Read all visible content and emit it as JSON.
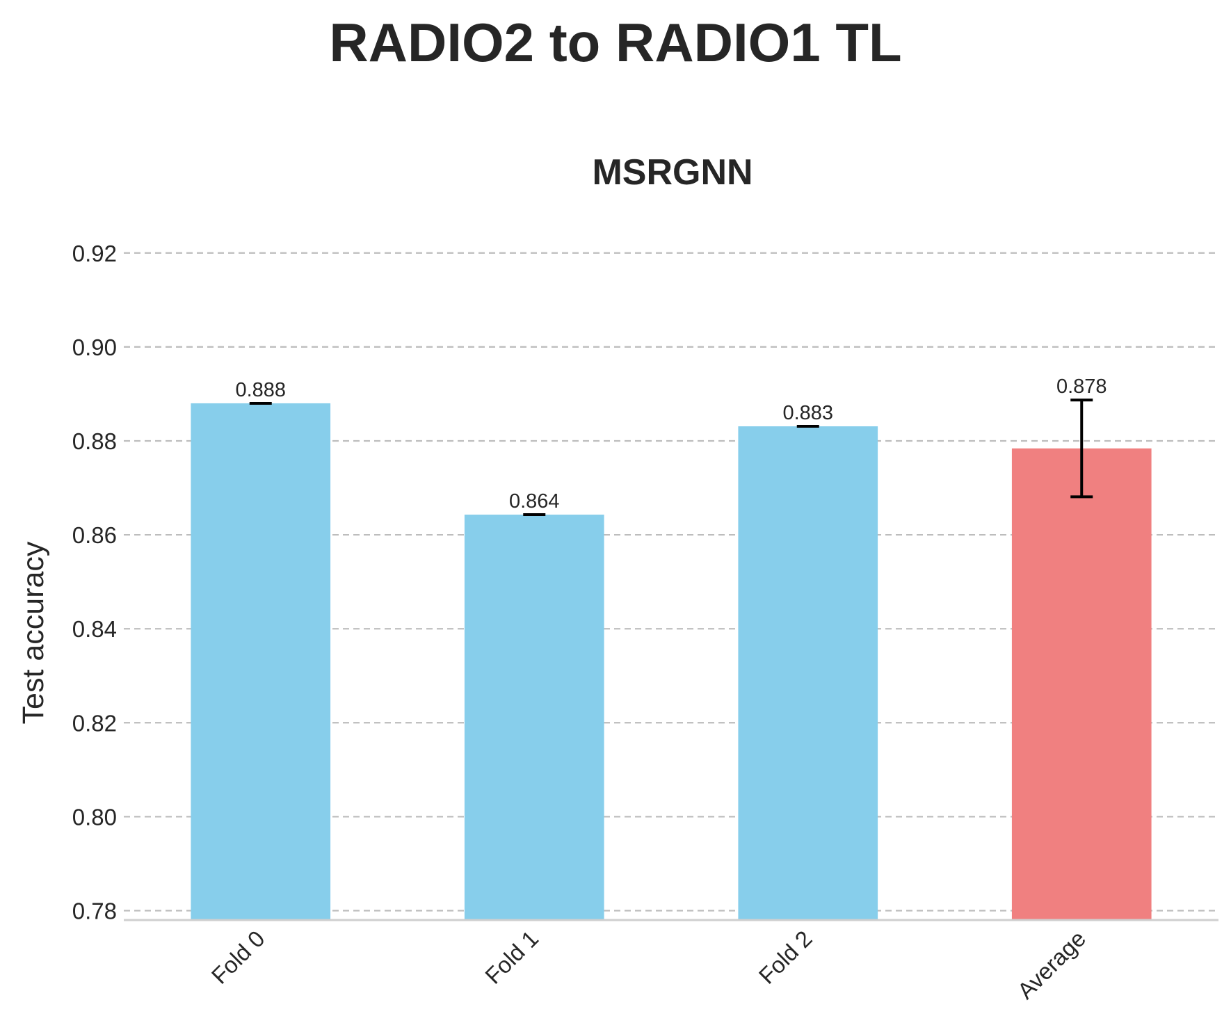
{
  "chart_data": {
    "type": "bar",
    "suptitle": "RADIO2 to RADIO1 TL",
    "title": "MSRGNN",
    "xlabel": "",
    "ylabel": "Test accuracy",
    "categories": [
      "Fold 0",
      "Fold 1",
      "Fold 2",
      "Average"
    ],
    "values": [
      0.888,
      0.8643,
      0.8831,
      0.8784
    ],
    "errors": [
      0,
      0,
      0,
      0.0103
    ],
    "data_labels": [
      "0.888",
      "0.864",
      "0.883",
      "0.878"
    ],
    "colors": [
      "#87CEEB",
      "#87CEEB",
      "#87CEEB",
      "#F08080"
    ],
    "ylim": [
      0.778,
      0.925
    ],
    "yticks": [
      0.78,
      0.8,
      0.82,
      0.84,
      0.86,
      0.88,
      0.9,
      0.92
    ],
    "ytick_labels": [
      "0.78",
      "0.80",
      "0.82",
      "0.84",
      "0.86",
      "0.88",
      "0.90",
      "0.92"
    ],
    "grid": "y-dashed",
    "legend": "none"
  }
}
